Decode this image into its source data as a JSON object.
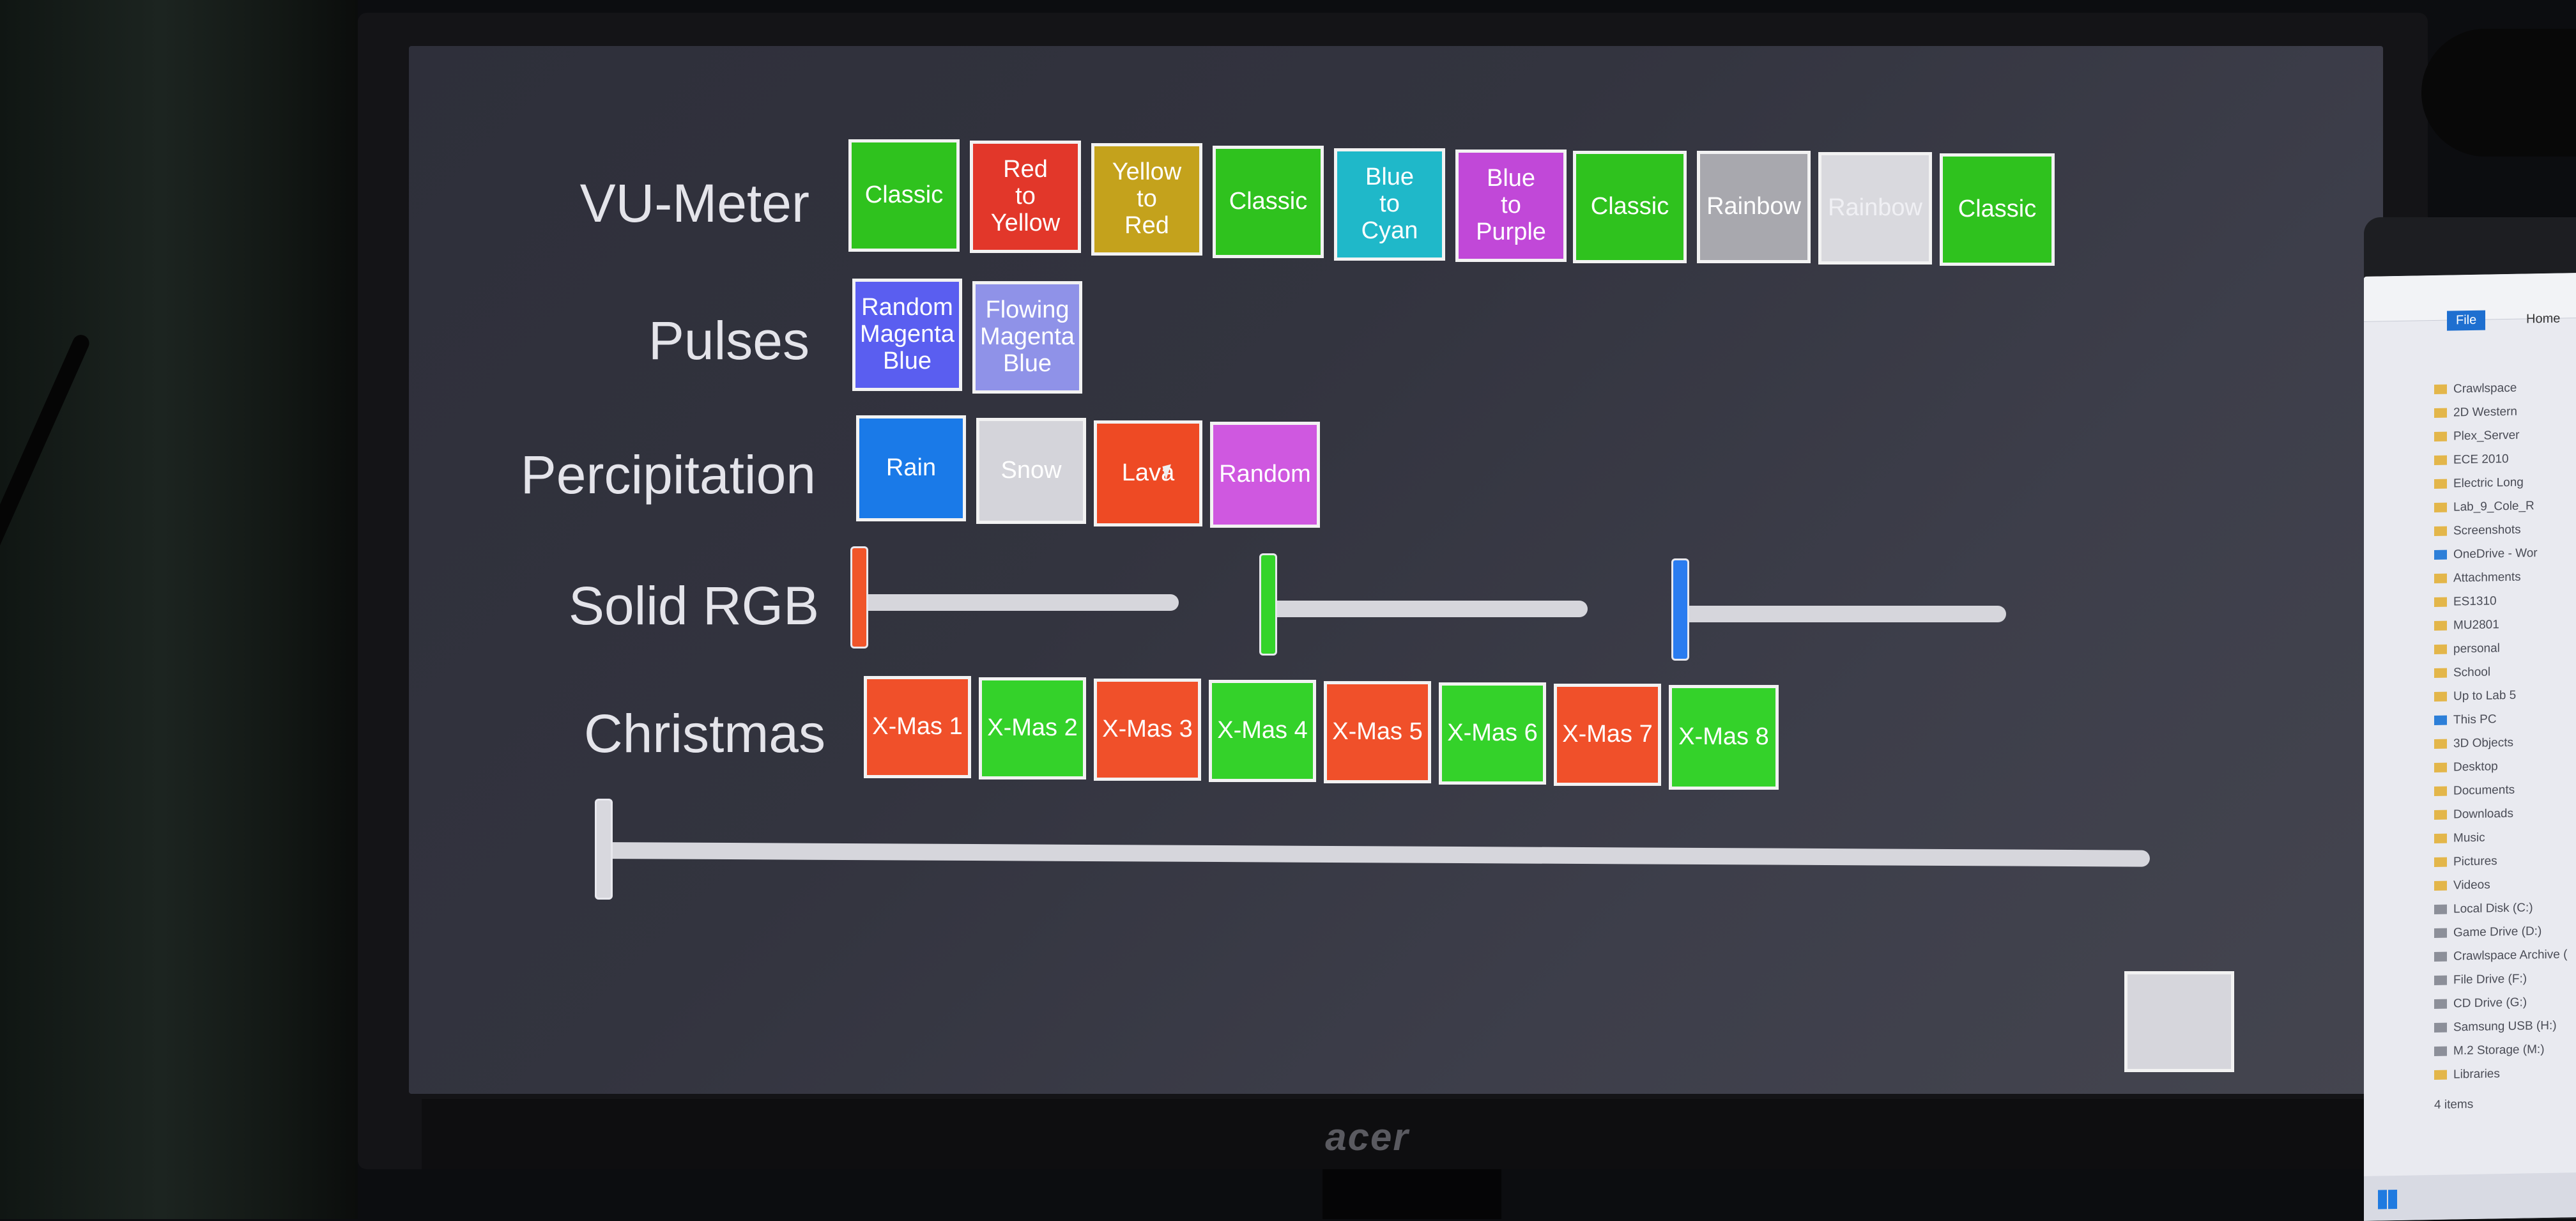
{
  "labels": {
    "vu_meter": "VU-Meter",
    "pulses": "Pulses",
    "percipitation": "Percipitation",
    "solid_rgb": "Solid RGB",
    "christmas": "Christmas"
  },
  "vu_meter": [
    {
      "label": "Classic",
      "color": "#2fc21e"
    },
    {
      "label": "Red\nto\nYellow",
      "color": "#e2372a"
    },
    {
      "label": "Yellow\nto\nRed",
      "color": "#c4a21c"
    },
    {
      "label": "Classic",
      "color": "#2fc21e"
    },
    {
      "label": "Blue\nto\nCyan",
      "color": "#1fb8c9"
    },
    {
      "label": "Blue\nto\nPurple",
      "color": "#c148d8"
    },
    {
      "label": "Classic",
      "color": "#2fc21e"
    },
    {
      "label": "Rainbow",
      "color": "#a8a8ae"
    },
    {
      "label": "Rainbow",
      "color": "#d9d9de"
    },
    {
      "label": "Classic",
      "color": "#2fc21e"
    }
  ],
  "pulses": [
    {
      "label": "Random\nMagenta\nBlue",
      "color": "#5a5ef0"
    },
    {
      "label": "Flowing\nMagenta\nBlue",
      "color": "#8f92e8"
    }
  ],
  "percipitation": [
    {
      "label": "Rain",
      "color": "#1a7ae8"
    },
    {
      "label": "Snow",
      "color": "#d4d4da"
    },
    {
      "label": "Lava",
      "color": "#ee4a24"
    },
    {
      "label": "Random",
      "color": "#cf58e0"
    }
  ],
  "solid_rgb": {
    "red_level": 0.0,
    "green_level": 0.0,
    "blue_level": 0.0,
    "red_color": "#f0552a",
    "green_color": "#34d42a",
    "blue_color": "#2a7cf0"
  },
  "christmas": [
    {
      "label": "X-Mas 1",
      "color": "#f0502a"
    },
    {
      "label": "X-Mas 2",
      "color": "#34d22a"
    },
    {
      "label": "X-Mas 3",
      "color": "#f0502a"
    },
    {
      "label": "X-Mas 4",
      "color": "#34d22a"
    },
    {
      "label": "X-Mas 5",
      "color": "#f0502a"
    },
    {
      "label": "X-Mas 6",
      "color": "#34d22a"
    },
    {
      "label": "X-Mas 7",
      "color": "#f0502a"
    },
    {
      "label": "X-Mas 8",
      "color": "#34d22a"
    }
  ],
  "brightness_level": 0.0,
  "monitor_brand": "acer",
  "explorer": {
    "tabs": [
      "File",
      "Home"
    ],
    "items": [
      {
        "label": "Crawlspace",
        "icon": "folder-icon"
      },
      {
        "label": "2D Western",
        "icon": "folder-icon"
      },
      {
        "label": "Plex_Server",
        "icon": "folder-icon"
      },
      {
        "label": "ECE 2010",
        "icon": "folder-icon"
      },
      {
        "label": "Electric Long",
        "icon": "folder-icon"
      },
      {
        "label": "Lab_9_Cole_R",
        "icon": "folder-icon"
      },
      {
        "label": "Screenshots",
        "icon": "folder-icon"
      },
      {
        "label": "OneDrive - Wor",
        "icon": "cloud-icon"
      },
      {
        "label": "Attachments",
        "icon": "folder-icon"
      },
      {
        "label": "ES1310",
        "icon": "folder-icon"
      },
      {
        "label": "MU2801",
        "icon": "folder-icon"
      },
      {
        "label": "personal",
        "icon": "folder-icon"
      },
      {
        "label": "School",
        "icon": "folder-icon"
      },
      {
        "label": "Up to Lab 5",
        "icon": "folder-icon"
      },
      {
        "label": "This PC",
        "icon": "computer-icon"
      },
      {
        "label": "3D Objects",
        "icon": "folder-icon"
      },
      {
        "label": "Desktop",
        "icon": "folder-icon"
      },
      {
        "label": "Documents",
        "icon": "folder-icon"
      },
      {
        "label": "Downloads",
        "icon": "download-icon"
      },
      {
        "label": "Music",
        "icon": "music-icon"
      },
      {
        "label": "Pictures",
        "icon": "folder-icon"
      },
      {
        "label": "Videos",
        "icon": "folder-icon"
      },
      {
        "label": "Local Disk (C:)",
        "icon": "drive-icon"
      },
      {
        "label": "Game Drive (D:)",
        "icon": "drive-icon"
      },
      {
        "label": "Crawlspace Archive (",
        "icon": "drive-icon"
      },
      {
        "label": "File Drive (F:)",
        "icon": "drive-icon"
      },
      {
        "label": "CD Drive (G:)",
        "icon": "drive-icon"
      },
      {
        "label": "Samsung USB (H:)",
        "icon": "drive-icon"
      },
      {
        "label": "M.2 Storage (M:)",
        "icon": "drive-icon"
      },
      {
        "label": "Libraries",
        "icon": "folder-icon"
      }
    ],
    "footer": "4 items"
  }
}
